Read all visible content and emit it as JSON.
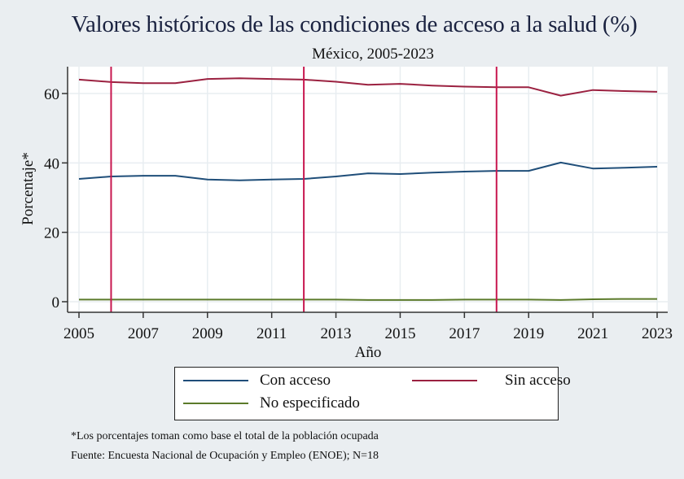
{
  "chart_data": {
    "type": "line",
    "title": "Valores históricos de las condiciones de acceso a la salud (%)",
    "subtitle": "México, 2005-2023",
    "xlabel": "Año",
    "ylabel": "Porcentaje*",
    "xlim": [
      2005,
      2023
    ],
    "ylim": [
      0,
      67
    ],
    "x_ticks": [
      2005,
      2007,
      2009,
      2011,
      2013,
      2015,
      2017,
      2019,
      2021,
      2023
    ],
    "y_ticks": [
      0,
      20,
      40,
      60
    ],
    "grid": true,
    "reference_lines_x": [
      2006,
      2012,
      2018
    ],
    "reference_line_color": "#c8174f",
    "x": [
      2005,
      2006,
      2007,
      2008,
      2009,
      2010,
      2011,
      2012,
      2013,
      2014,
      2015,
      2016,
      2017,
      2018,
      2019,
      2020,
      2021,
      2022,
      2023
    ],
    "series": [
      {
        "name": "Con acceso",
        "color": "#1f4e79",
        "values": [
          35.4,
          36.1,
          36.3,
          36.3,
          35.2,
          35.0,
          35.2,
          35.4,
          36.1,
          37.0,
          36.8,
          37.2,
          37.5,
          37.7,
          37.7,
          40.1,
          38.4,
          38.6,
          38.9
        ]
      },
      {
        "name": "Sin acceso",
        "color": "#9b2140",
        "values": [
          64.0,
          63.3,
          63.0,
          63.0,
          64.2,
          64.4,
          64.2,
          64.0,
          63.4,
          62.5,
          62.8,
          62.3,
          62.0,
          61.8,
          61.8,
          59.4,
          61.0,
          60.7,
          60.5
        ]
      },
      {
        "name": "No especificado",
        "color": "#5b7a2a",
        "values": [
          0.6,
          0.6,
          0.6,
          0.6,
          0.6,
          0.6,
          0.6,
          0.6,
          0.6,
          0.5,
          0.5,
          0.5,
          0.6,
          0.6,
          0.6,
          0.5,
          0.7,
          0.8,
          0.8
        ]
      }
    ],
    "legend": {
      "position": "bottom",
      "entries": [
        "Con acceso",
        "Sin acceso",
        "No especificado"
      ]
    },
    "notes": [
      "*Los porcentajes toman como base el total de la población ocupada",
      "Fuente: Encuesta Nacional de Ocupación y Empleo (ENOE); N=18"
    ]
  }
}
